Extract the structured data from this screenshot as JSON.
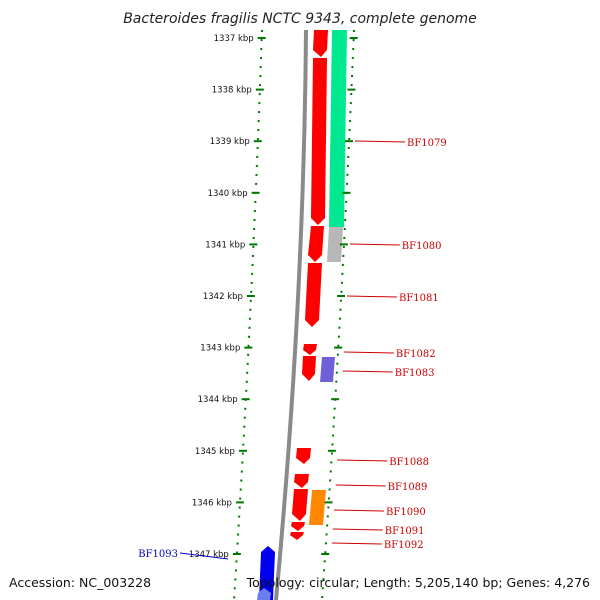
{
  "title": "Bacteroides fragilis NCTC 9343, complete genome",
  "footer": {
    "accession": "Accession: NC_003228",
    "topology": "Topology: circular; Length: 5,205,140 bp; Genes: 4,276"
  },
  "colors": {
    "forward_gene": "#ff0000",
    "reverse_gene_blue": "#0000ee",
    "cds_track_green": "#00e890",
    "cds_track_grey": "#b8b8b8",
    "cds_purple": "#7060d8",
    "cds_orange": "#ff8800",
    "tick_green": "#007700",
    "label_red": "#cc0000",
    "label_blue": "#0000cc",
    "backbone": "#8a8a8a"
  },
  "scale": {
    "unit": "kbp",
    "ticks": [
      {
        "label": "1337 kbp",
        "kbp": 1337
      },
      {
        "label": "1338 kbp",
        "kbp": 1338
      },
      {
        "label": "1339 kbp",
        "kbp": 1339
      },
      {
        "label": "1340 kbp",
        "kbp": 1340
      },
      {
        "label": "1341 kbp",
        "kbp": 1341
      },
      {
        "label": "1342 kbp",
        "kbp": 1342
      },
      {
        "label": "1343 kbp",
        "kbp": 1343
      },
      {
        "label": "1344 kbp",
        "kbp": 1344
      },
      {
        "label": "1345 kbp",
        "kbp": 1345
      },
      {
        "label": "1346 kbp",
        "kbp": 1346
      },
      {
        "label": "1347 kbp",
        "kbp": 1347
      }
    ]
  },
  "genes": [
    {
      "label": "BF1079",
      "strand": "+",
      "start_kbp": 1336.6,
      "end_kbp": 1340.8
    },
    {
      "label": "BF1080",
      "strand": "+",
      "start_kbp": 1340.8,
      "end_kbp": 1341.4
    },
    {
      "label": "BF1081",
      "strand": "+",
      "start_kbp": 1341.4,
      "end_kbp": 1342.6
    },
    {
      "label": "BF1082",
      "strand": "+",
      "start_kbp": 1342.9,
      "end_kbp": 1343.1
    },
    {
      "label": "BF1083",
      "strand": "+",
      "start_kbp": 1343.1,
      "end_kbp": 1343.6
    },
    {
      "label": "BF1088",
      "strand": "+",
      "start_kbp": 1344.9,
      "end_kbp": 1345.2
    },
    {
      "label": "BF1089",
      "strand": "+",
      "start_kbp": 1345.4,
      "end_kbp": 1345.6
    },
    {
      "label": "BF1090",
      "strand": "+",
      "start_kbp": 1345.7,
      "end_kbp": 1346.3
    },
    {
      "label": "BF1091",
      "strand": "+",
      "start_kbp": 1346.3,
      "end_kbp": 1346.5
    },
    {
      "label": "BF1092",
      "strand": "+",
      "start_kbp": 1346.5,
      "end_kbp": 1346.7
    },
    {
      "label": "BF1093",
      "strand": "-",
      "start_kbp": 1346.9,
      "end_kbp": 1347.5
    }
  ]
}
